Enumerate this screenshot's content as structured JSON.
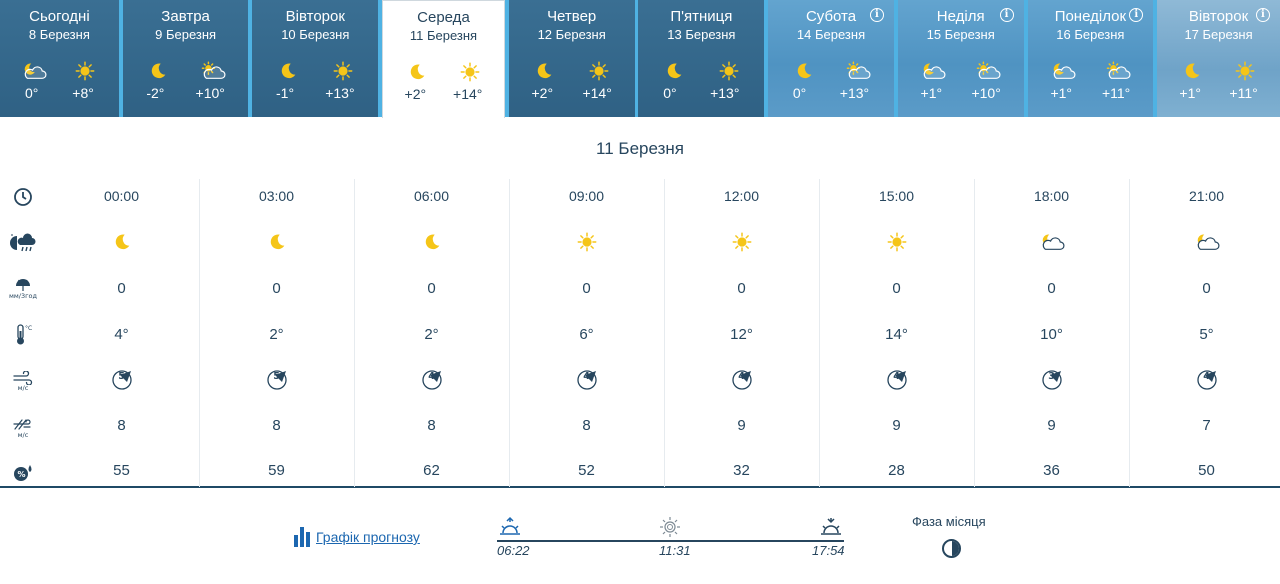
{
  "days": [
    {
      "name": "Сьогодні",
      "date": "8 Березня",
      "icons": [
        "moon-cloud-icon",
        "sun-icon"
      ],
      "t_min": "0°",
      "t_max": "+8°",
      "style": "weekday",
      "info": false
    },
    {
      "name": "Завтра",
      "date": "9 Березня",
      "icons": [
        "moon-icon",
        "sun-cloud-icon"
      ],
      "t_min": "-2°",
      "t_max": "+10°",
      "style": "weekday",
      "info": false
    },
    {
      "name": "Вівторок",
      "date": "10 Березня",
      "icons": [
        "moon-icon",
        "sun-icon"
      ],
      "t_min": "-1°",
      "t_max": "+13°",
      "style": "weekday",
      "info": false
    },
    {
      "name": "Середа",
      "date": "11 Березня",
      "icons": [
        "moon-icon",
        "sun-icon"
      ],
      "t_min": "+2°",
      "t_max": "+14°",
      "style": "active",
      "info": false
    },
    {
      "name": "Четвер",
      "date": "12 Березня",
      "icons": [
        "moon-icon",
        "sun-icon"
      ],
      "t_min": "+2°",
      "t_max": "+14°",
      "style": "weekday",
      "info": false
    },
    {
      "name": "П'ятниця",
      "date": "13 Березня",
      "icons": [
        "moon-icon",
        "sun-icon"
      ],
      "t_min": "0°",
      "t_max": "+13°",
      "style": "weekday",
      "info": false
    },
    {
      "name": "Субота",
      "date": "14 Березня",
      "icons": [
        "moon-icon",
        "sun-cloud-icon"
      ],
      "t_min": "0°",
      "t_max": "+13°",
      "style": "weekend",
      "info": true
    },
    {
      "name": "Неділя",
      "date": "15 Березня",
      "icons": [
        "moon-cloud-icon",
        "sun-cloud-icon"
      ],
      "t_min": "+1°",
      "t_max": "+10°",
      "style": "weekend",
      "info": true
    },
    {
      "name": "Понеділок",
      "date": "16 Березня",
      "icons": [
        "moon-cloud-icon",
        "sun-cloud-icon"
      ],
      "t_min": "+1°",
      "t_max": "+11°",
      "style": "weekend",
      "info": true
    },
    {
      "name": "Вівторок",
      "date": "17 Березня",
      "icons": [
        "moon-icon",
        "sun-icon"
      ],
      "t_min": "+1°",
      "t_max": "+11°",
      "style": "last",
      "info": true
    }
  ],
  "selected_day_title": "11 Березня",
  "row_icons": [
    {
      "icon": "clock-icon",
      "unit": ""
    },
    {
      "icon": "weather-condition-icon",
      "unit": ""
    },
    {
      "icon": "precipitation-icon",
      "unit": "мм/3год"
    },
    {
      "icon": "thermometer-icon",
      "unit": ""
    },
    {
      "icon": "wind-icon",
      "unit": "м/с"
    },
    {
      "icon": "wind-gust-icon",
      "unit": "м/с"
    },
    {
      "icon": "humidity-icon",
      "unit": ""
    }
  ],
  "hours": [
    {
      "time": "00:00",
      "icon": "moon-icon",
      "precip": "0",
      "temp": "4°",
      "wind": "5",
      "gust": "8",
      "humidity": "55"
    },
    {
      "time": "03:00",
      "icon": "moon-icon",
      "precip": "0",
      "temp": "2°",
      "wind": "5",
      "gust": "8",
      "humidity": "59"
    },
    {
      "time": "06:00",
      "icon": "moon-icon",
      "precip": "0",
      "temp": "2°",
      "wind": "4",
      "gust": "8",
      "humidity": "62"
    },
    {
      "time": "09:00",
      "icon": "sun-icon",
      "precip": "0",
      "temp": "6°",
      "wind": "4",
      "gust": "8",
      "humidity": "52"
    },
    {
      "time": "12:00",
      "icon": "sun-icon",
      "precip": "0",
      "temp": "12°",
      "wind": "4",
      "gust": "9",
      "humidity": "32"
    },
    {
      "time": "15:00",
      "icon": "sun-icon",
      "precip": "0",
      "temp": "14°",
      "wind": "4",
      "gust": "9",
      "humidity": "28"
    },
    {
      "time": "18:00",
      "icon": "moon-cloud-icon",
      "precip": "0",
      "temp": "10°",
      "wind": "3",
      "gust": "9",
      "humidity": "36"
    },
    {
      "time": "21:00",
      "icon": "moon-cloud-icon",
      "precip": "0",
      "temp": "5°",
      "wind": "4",
      "gust": "7",
      "humidity": "50"
    }
  ],
  "footer": {
    "chart_link": "Графік прогнозу",
    "sunrise": "06:22",
    "noon": "11:31",
    "sunset": "17:54",
    "moon_phase_label": "Фаза місяця",
    "moon_phase_icon": "moon-phase-icon"
  },
  "colors": {
    "tab_weekday": "#2f6184",
    "tab_weekend": "#5b9bc8",
    "separator": "#4fb2e3",
    "text": "#27465e",
    "sun": "#f5c518",
    "link": "#1c67b0"
  }
}
